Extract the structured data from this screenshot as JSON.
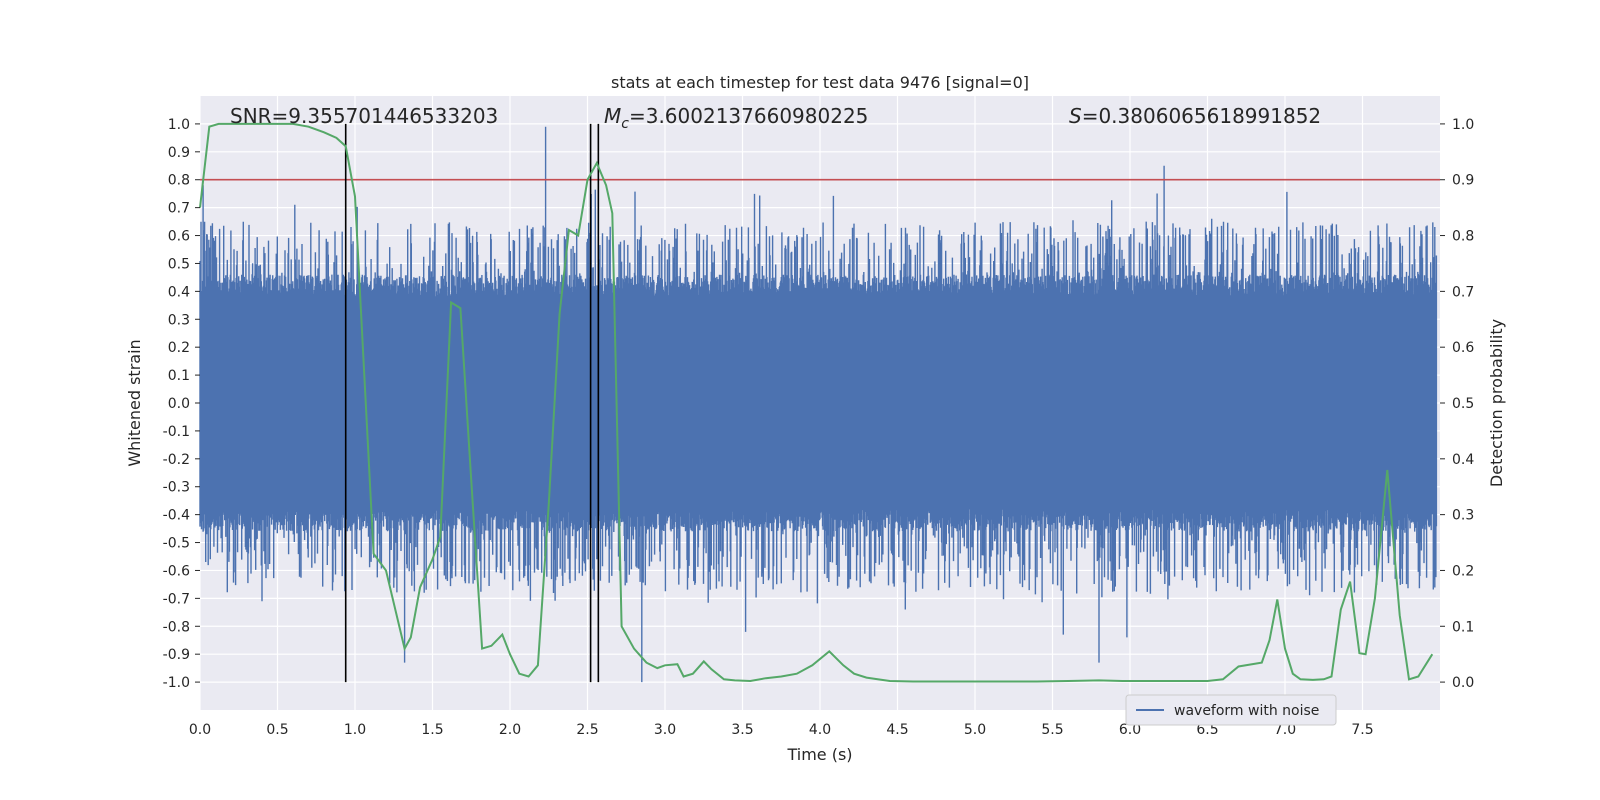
{
  "chart_data": {
    "type": "line",
    "title": "stats at each timestep for test data 9476 [signal=0]",
    "xlabel": "Time (s)",
    "ylabel": "Whitened strain",
    "y2label": "Detection probability",
    "xlim": [
      0.0,
      8.0
    ],
    "ylim": [
      -1.1,
      1.1
    ],
    "y2lim": [
      -0.05,
      1.05
    ],
    "xticks": [
      "0.0",
      "0.5",
      "1.0",
      "1.5",
      "2.0",
      "2.5",
      "3.0",
      "3.5",
      "4.0",
      "4.5",
      "5.0",
      "5.5",
      "6.0",
      "6.5",
      "7.0",
      "7.5"
    ],
    "yticks": [
      "1.0",
      "0.9",
      "0.8",
      "0.7",
      "0.6",
      "0.5",
      "0.4",
      "0.3",
      "0.2",
      "0.1",
      "0.0",
      "-0.1",
      "-0.2",
      "-0.3",
      "-0.4",
      "-0.5",
      "-0.6",
      "-0.7",
      "-0.8",
      "-0.9",
      "-1.0"
    ],
    "y2ticks": [
      "1.0",
      "0.9",
      "0.8",
      "0.7",
      "0.6",
      "0.5",
      "0.4",
      "0.3",
      "0.2",
      "0.1",
      "0.0"
    ],
    "grid": true,
    "legend_placement": "lower-right",
    "annotations": {
      "snr": "SNR=9.355701446533203",
      "mc_symbol": "M",
      "mc_sub": "c",
      "mc_value": "=3.6002137660980225",
      "s_symbol": "S",
      "s_value": "=0.3806065618991852"
    },
    "series": [
      {
        "name": "waveform with noise",
        "axis": "left",
        "color": "#4c72b0",
        "style": "dense-noise",
        "band_min": -0.4,
        "band_max": 0.4,
        "peaks": [
          {
            "x": 0.02,
            "y": 0.78
          },
          {
            "x": 2.23,
            "y": 0.99
          },
          {
            "x": 6.22,
            "y": 0.85
          },
          {
            "x": 1.32,
            "y": -0.93
          },
          {
            "x": 2.85,
            "y": -1.0
          },
          {
            "x": 5.57,
            "y": -0.83
          },
          {
            "x": 5.8,
            "y": -0.93
          },
          {
            "x": 5.98,
            "y": -0.84
          },
          {
            "x": 3.52,
            "y": -0.82
          },
          {
            "x": 4.55,
            "y": -0.74
          },
          {
            "x": 0.4,
            "y": -0.71
          }
        ]
      },
      {
        "name": "",
        "axis": "right",
        "color": "#55a868",
        "x": [
          0.0,
          0.06,
          0.12,
          0.2,
          0.3,
          0.4,
          0.5,
          0.6,
          0.7,
          0.8,
          0.88,
          0.94,
          1.0,
          1.06,
          1.12,
          1.2,
          1.32,
          1.36,
          1.42,
          1.5,
          1.55,
          1.62,
          1.68,
          1.75,
          1.82,
          1.88,
          1.95,
          2.0,
          2.06,
          2.12,
          2.18,
          2.25,
          2.32,
          2.38,
          2.44,
          2.5,
          2.56,
          2.62,
          2.66,
          2.72,
          2.8,
          2.88,
          2.95,
          3.0,
          3.08,
          3.12,
          3.18,
          3.25,
          3.3,
          3.38,
          3.45,
          3.55,
          3.65,
          3.75,
          3.85,
          3.95,
          4.06,
          4.15,
          4.22,
          4.3,
          4.45,
          4.6,
          4.8,
          5.0,
          5.2,
          5.4,
          5.6,
          5.8,
          5.95,
          6.0,
          6.1,
          6.2,
          6.3,
          6.4,
          6.5,
          6.6,
          6.7,
          6.85,
          6.9,
          6.95,
          7.0,
          7.05,
          7.1,
          7.18,
          7.25,
          7.3,
          7.36,
          7.42,
          7.48,
          7.52,
          7.58,
          7.66,
          7.74,
          7.8,
          7.86,
          7.95
        ],
        "y": [
          0.85,
          0.995,
          1.0,
          1.0,
          1.0,
          1.0,
          1.0,
          1.0,
          0.995,
          0.985,
          0.975,
          0.96,
          0.87,
          0.55,
          0.23,
          0.2,
          0.06,
          0.08,
          0.17,
          0.22,
          0.26,
          0.68,
          0.67,
          0.36,
          0.06,
          0.065,
          0.085,
          0.05,
          0.015,
          0.01,
          0.03,
          0.32,
          0.66,
          0.81,
          0.8,
          0.9,
          0.93,
          0.89,
          0.84,
          0.1,
          0.06,
          0.035,
          0.025,
          0.03,
          0.032,
          0.01,
          0.015,
          0.037,
          0.023,
          0.005,
          0.003,
          0.002,
          0.007,
          0.01,
          0.015,
          0.03,
          0.055,
          0.03,
          0.015,
          0.008,
          0.002,
          0.001,
          0.001,
          0.001,
          0.001,
          0.001,
          0.002,
          0.003,
          0.002,
          0.002,
          0.002,
          0.002,
          0.002,
          0.002,
          0.002,
          0.005,
          0.028,
          0.035,
          0.075,
          0.148,
          0.06,
          0.015,
          0.005,
          0.004,
          0.005,
          0.01,
          0.13,
          0.18,
          0.052,
          0.05,
          0.15,
          0.38,
          0.12,
          0.005,
          0.01,
          0.05
        ]
      }
    ],
    "reference_lines": {
      "threshold_y2": 0.9,
      "threshold_color": "#c44e52",
      "vertical_x": [
        0.94,
        2.52,
        2.57
      ],
      "vertical_y2_range": [
        0.0,
        1.0
      ],
      "vertical_color": "#000000"
    }
  },
  "colors": {
    "axes_bg": "#eaeaf2",
    "grid": "#ffffff",
    "text": "#262626"
  }
}
